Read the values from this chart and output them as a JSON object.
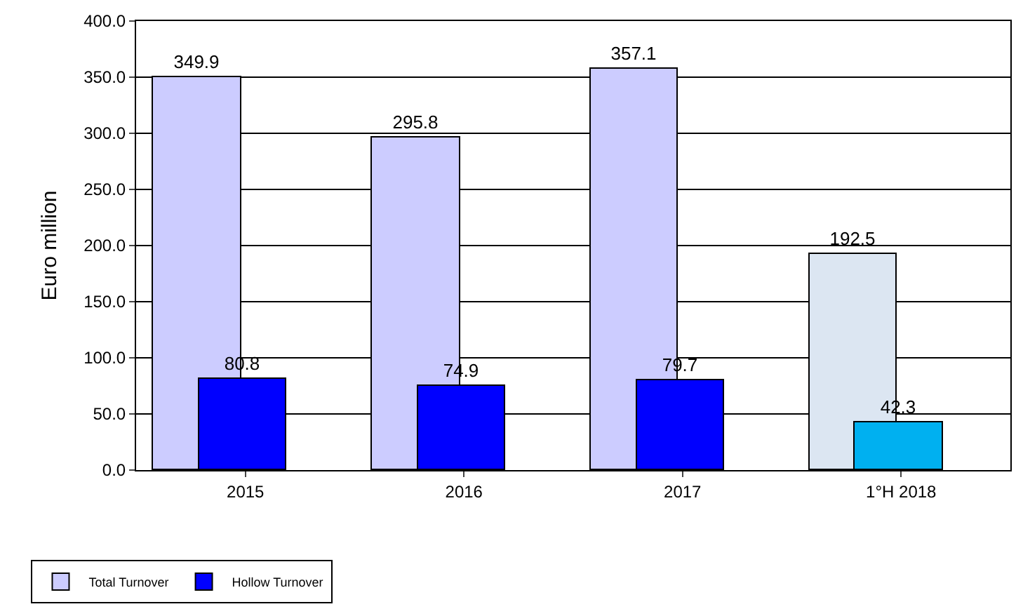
{
  "chart_data": {
    "type": "bar",
    "ylabel": "Euro million",
    "categories": [
      "2015",
      "2016",
      "2017",
      "1°H 2018"
    ],
    "series": [
      {
        "name": "Total Turnover",
        "color": "#ccccff",
        "colors": [
          "#ccccff",
          "#ccccff",
          "#ccccff",
          "#dce6f2"
        ],
        "values": [
          349.9,
          295.8,
          357.1,
          192.5
        ]
      },
      {
        "name": "Hollow Turnover",
        "color": "#0000ff",
        "colors": [
          "#0000ff",
          "#0000ff",
          "#0000ff",
          "#00b0f0"
        ],
        "values": [
          80.8,
          74.9,
          79.7,
          42.3
        ]
      }
    ],
    "ylim": [
      0,
      400
    ],
    "yticks": [
      {
        "value": 0,
        "label": "0.0"
      },
      {
        "value": 50,
        "label": "50.0"
      },
      {
        "value": 100,
        "label": "100.0"
      },
      {
        "value": 150,
        "label": "150.0"
      },
      {
        "value": 200,
        "label": "200.0"
      },
      {
        "value": 250,
        "label": "250.0"
      },
      {
        "value": 300,
        "label": "300.0"
      },
      {
        "value": 350,
        "label": "350.0"
      },
      {
        "value": 400,
        "label": "400.0"
      }
    ],
    "grid": "y",
    "legend": "bottom left",
    "data_labels": true
  }
}
